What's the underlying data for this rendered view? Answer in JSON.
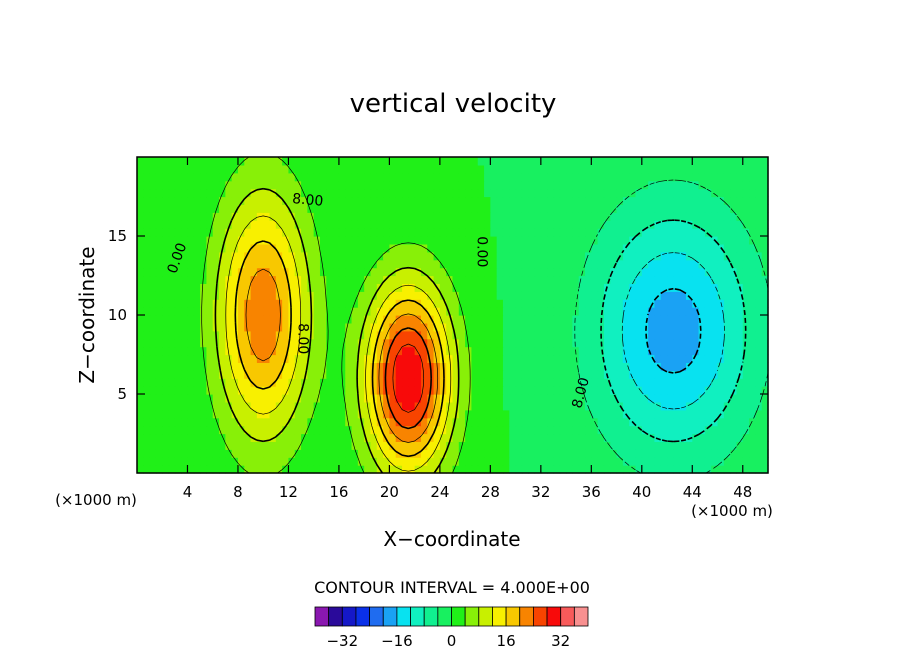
{
  "chart_data": {
    "type": "heatmap",
    "title": "vertical velocity",
    "xlabel": "X−coordinate",
    "ylabel": "Z−coordinate",
    "x_unit_label": "(×1000 m)",
    "z_unit_label": "(×1000 m)",
    "xlim": [
      0,
      50
    ],
    "ylim": [
      0,
      20
    ],
    "x_ticks": [
      4,
      8,
      12,
      16,
      20,
      24,
      28,
      32,
      36,
      40,
      44,
      48
    ],
    "x_tick_labels": [
      "4",
      "8",
      "12",
      "16",
      "20",
      "24",
      "28",
      "32",
      "36",
      "40",
      "44",
      "48"
    ],
    "y_ticks": [
      5,
      10,
      15
    ],
    "y_tick_labels": [
      "5",
      "10",
      "15"
    ],
    "contour_interval_text": "CONTOUR INTERVAL = 4.000E+00",
    "contour_interval": 4,
    "contour_labels": [
      {
        "text": "0.00",
        "x": 3.5,
        "z": 13.5,
        "angle": -70
      },
      {
        "text": "8.00",
        "x": 13.5,
        "z": 17.0,
        "angle": 5
      },
      {
        "text": "8.00",
        "x": 12.8,
        "z": 8.5,
        "angle": 90
      },
      {
        "text": "0.00",
        "x": 27.0,
        "z": 14.0,
        "angle": 90
      },
      {
        "text": "8.00",
        "x": 35.5,
        "z": 5.0,
        "angle": -75
      }
    ],
    "features": [
      {
        "name": "updraft-left",
        "x": 10.0,
        "z": 10.0,
        "peak": 23,
        "sx": 2.6,
        "sz": 5.5
      },
      {
        "name": "updraft-right",
        "x": 21.5,
        "z": 6.0,
        "peak": 32,
        "sx": 2.4,
        "sz": 4.2
      },
      {
        "name": "downdraft-right",
        "x": 42.5,
        "z": 9.0,
        "peak": -18,
        "sx": 4.5,
        "sz": 5.5
      }
    ],
    "colorbar": {
      "levels": [
        -36,
        -32,
        -28,
        -24,
        -20,
        -16,
        -12,
        -8,
        -4,
        0,
        4,
        8,
        12,
        16,
        20,
        24,
        28,
        32,
        36
      ],
      "tick_values": [
        -32,
        -16,
        0,
        16,
        32
      ],
      "tick_labels": [
        "−32",
        "−16",
        "0",
        "16",
        "32"
      ],
      "colors": [
        "#8a17b0",
        "#2a0a9a",
        "#1518c8",
        "#0a30e8",
        "#1f6cf0",
        "#1aa2f4",
        "#08e2f0",
        "#10f0c0",
        "#10f090",
        "#18f060",
        "#20f018",
        "#88f008",
        "#c8f000",
        "#f8f000",
        "#f8c800",
        "#f88400",
        "#f84400",
        "#f80a0a",
        "#f85a5a",
        "#f89090"
      ]
    }
  }
}
